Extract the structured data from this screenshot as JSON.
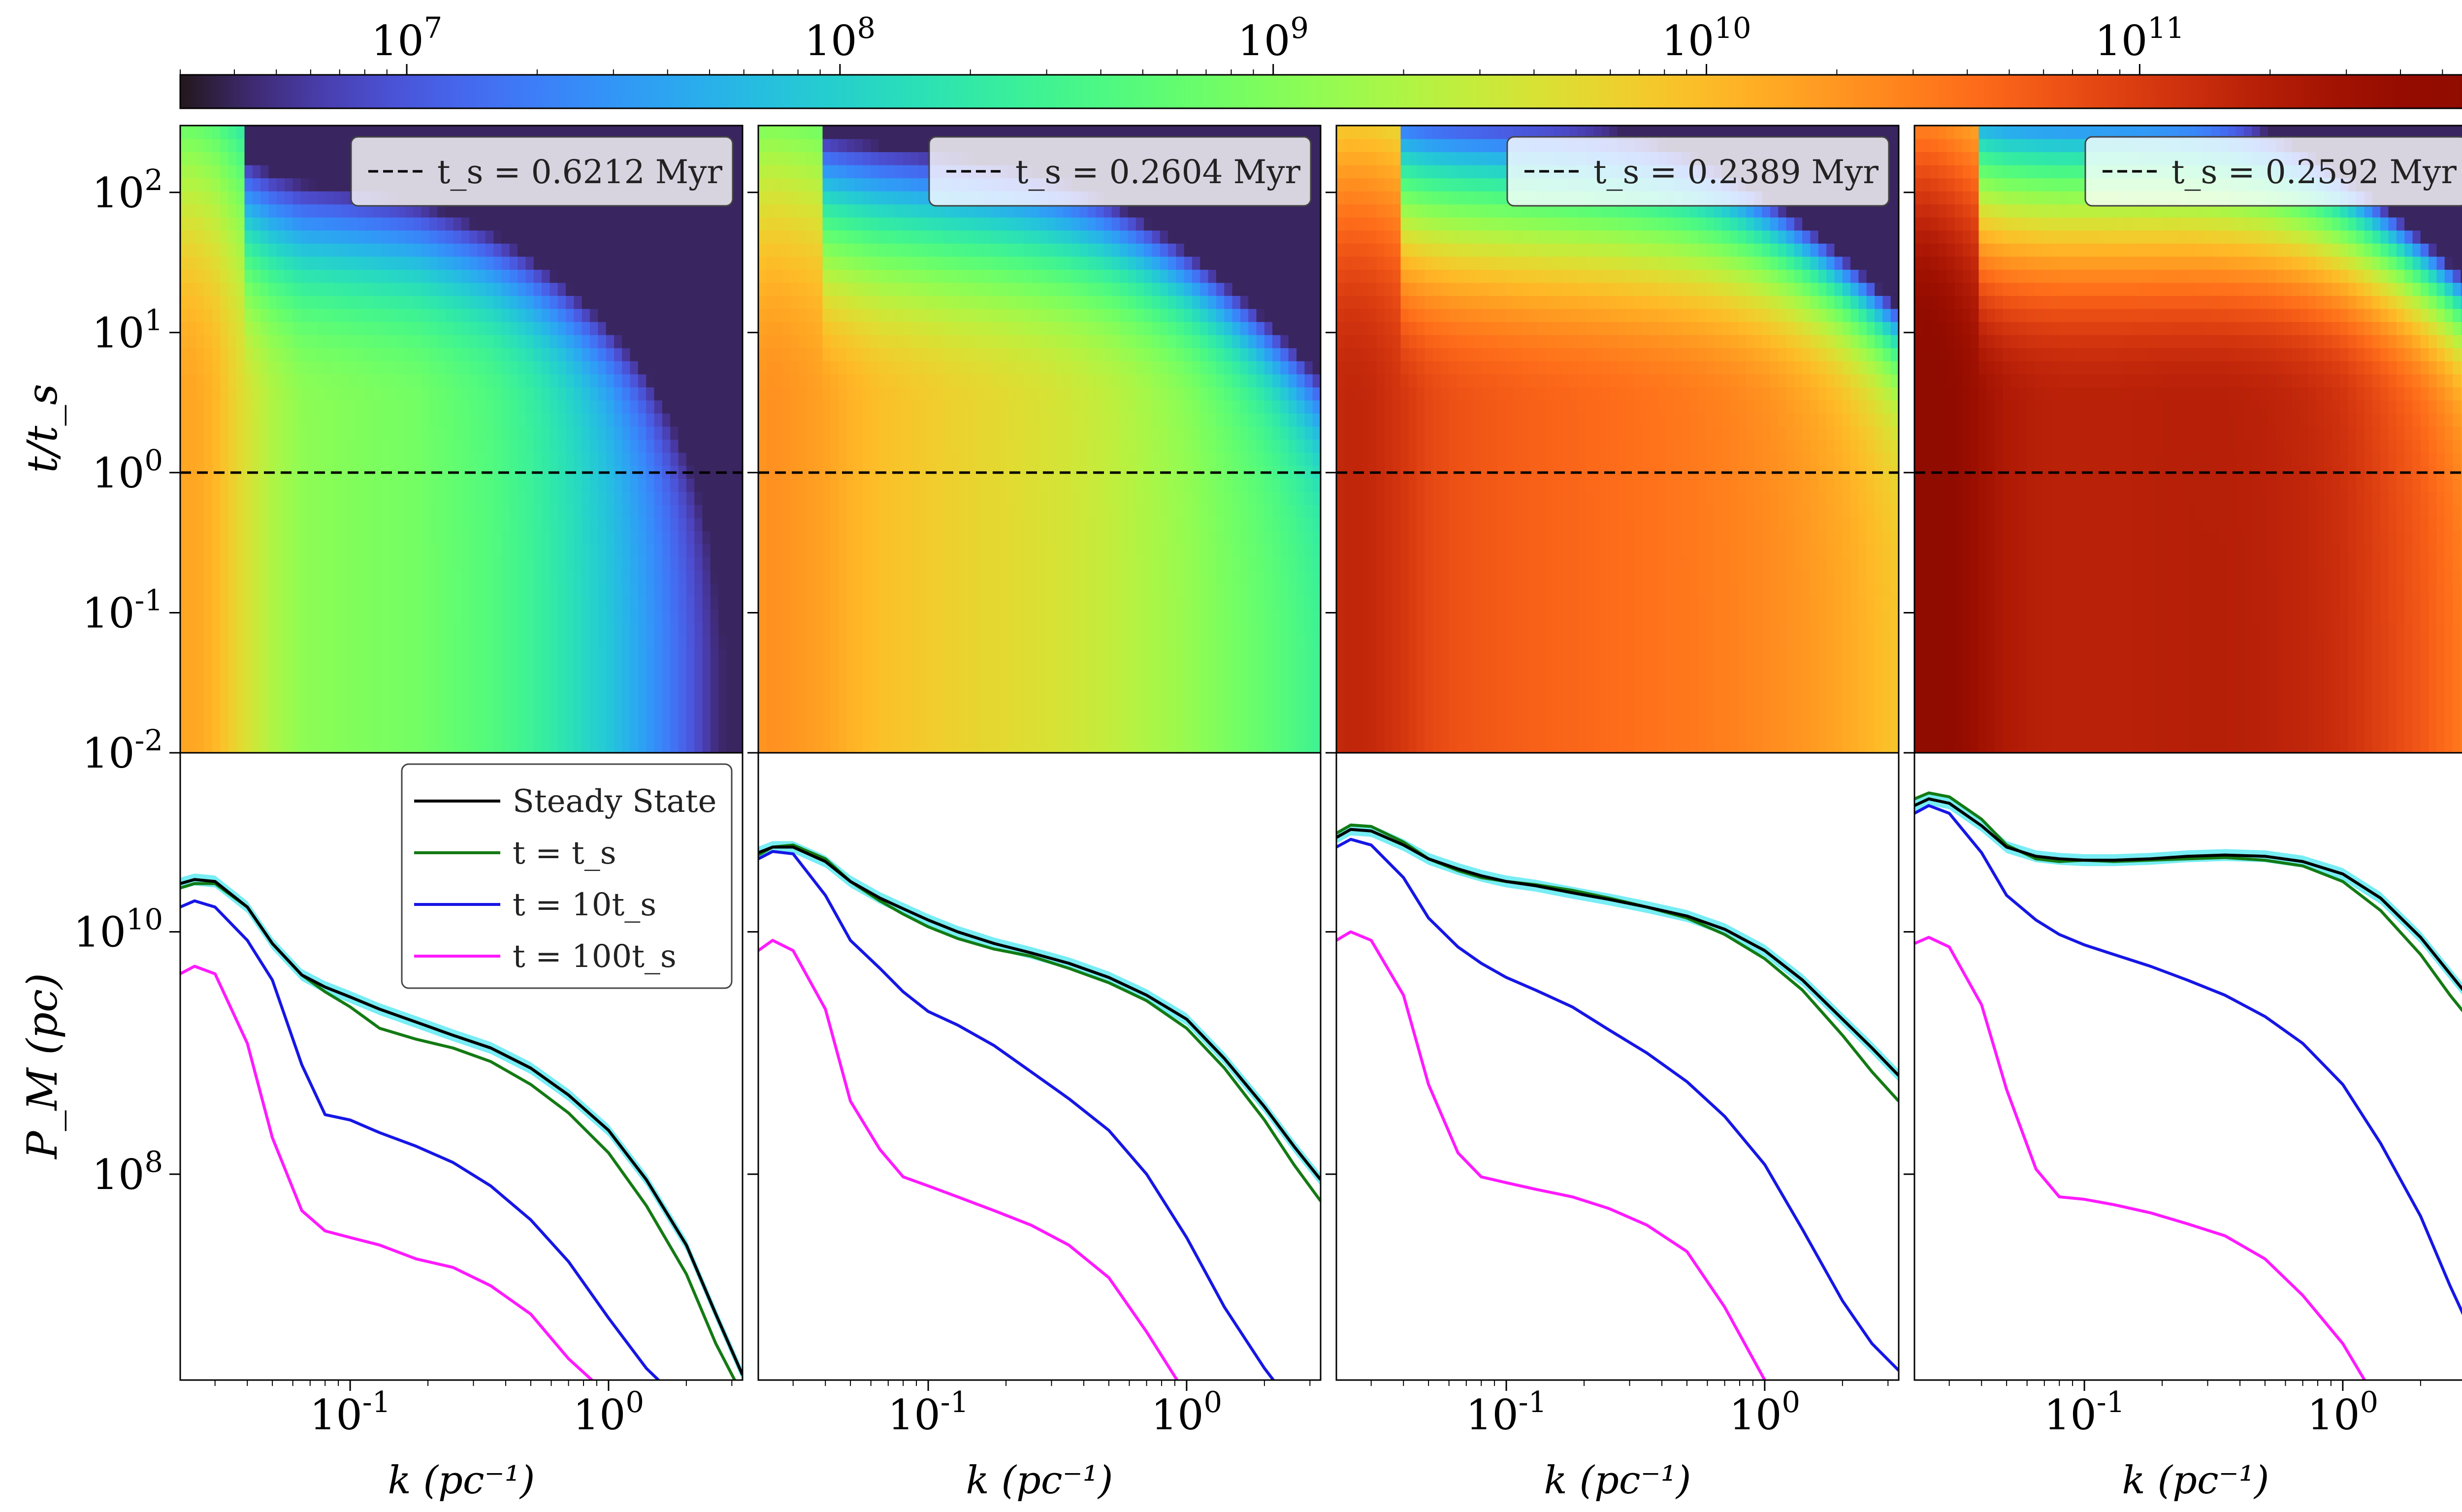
{
  "colorbar": {
    "scale": "log",
    "range": [
      3000000,
      600000000000
    ],
    "ticks": [
      {
        "value": 10000000,
        "label": "10^7"
      },
      {
        "value": 100000000,
        "label": "10^8"
      },
      {
        "value": 1000000000,
        "label": "10^9"
      },
      {
        "value": 10000000000,
        "label": "10^10"
      },
      {
        "value": 100000000000,
        "label": "10^11"
      }
    ],
    "colormap": "turbo"
  },
  "axes": {
    "k_range": [
      0.022,
      3.3
    ],
    "t_range": [
      0.01,
      300
    ],
    "p_range": [
      2000000,
      300000000000
    ],
    "heatmap_y_label": "t/t_s",
    "spectrum_y_label": "P_M (pc)",
    "x_label": "k (pc⁻¹)",
    "x_ticks": [
      {
        "value": 0.1,
        "label": "10^-1"
      },
      {
        "value": 1,
        "label": "10^0"
      }
    ],
    "t_ticks": [
      {
        "value": 100,
        "label": "10^2"
      },
      {
        "value": 10,
        "label": "10^1"
      },
      {
        "value": 1,
        "label": "10^0"
      },
      {
        "value": 0.1,
        "label": "10^-1"
      },
      {
        "value": 0.01,
        "label": "10^-2"
      }
    ],
    "p_ticks": [
      {
        "value": 10000000000,
        "label": "10^10"
      },
      {
        "value": 100000000,
        "label": "10^8"
      }
    ],
    "reference_line_t": 1
  },
  "legend": {
    "entries": [
      {
        "label": "Steady State",
        "color": "#000000"
      },
      {
        "label": "t = t_s",
        "color": "#137a13"
      },
      {
        "label": "t = 10t_s",
        "color": "#1616e6"
      },
      {
        "label": "t = 100t_s",
        "color": "#ff1aff"
      }
    ]
  },
  "chart_data": [
    {
      "type": "heatmap+line",
      "panel_label": "t_s = 0.6212 Myr",
      "ts_myr": 0.6212,
      "x": [
        0.022,
        0.025,
        0.03,
        0.04,
        0.05,
        0.065,
        0.08,
        0.1,
        0.13,
        0.18,
        0.25,
        0.35,
        0.5,
        0.7,
        1.0,
        1.4,
        2.0,
        2.6,
        3.3
      ],
      "series": [
        {
          "name": "Steady State",
          "color": "#000000",
          "values": [
            25000000000.0,
            27000000000.0,
            26000000000.0,
            16000000000.0,
            8000000000.0,
            4400000000.0,
            3500000000.0,
            2900000000.0,
            2300000000.0,
            1800000000.0,
            1400000000.0,
            1100000000.0,
            750000000.0,
            450000000.0,
            230000000.0,
            90000000.0,
            26000000.0,
            7000000.0,
            2200000.0
          ]
        },
        {
          "name": "t = t_s",
          "color": "#137a13",
          "values": [
            23000000000.0,
            25000000000.0,
            25000000000.0,
            16000000000.0,
            8000000000.0,
            4400000000.0,
            3200000000.0,
            2400000000.0,
            1600000000.0,
            1300000000.0,
            1100000000.0,
            850000000.0,
            550000000.0,
            320000000.0,
            150000000.0,
            55000000.0,
            15000000.0,
            4000000.0,
            1500000.0
          ]
        },
        {
          "name": "t = 10t_s",
          "color": "#1616e6",
          "values": [
            16000000000.0,
            18000000000.0,
            16000000000.0,
            8500000000.0,
            4000000000.0,
            800000000.0,
            310000000.0,
            280000000.0,
            220000000.0,
            170000000.0,
            125000000.0,
            80000000.0,
            42000000.0,
            19000000.0,
            6500000.0,
            2500000.0,
            1200000.0,
            1000000.0,
            1000000.0
          ]
        },
        {
          "name": "t = 100t_s",
          "color": "#ff1aff",
          "values": [
            4500000000.0,
            5200000000.0,
            4500000000.0,
            1200000000.0,
            200000000.0,
            50000000.0,
            34000000.0,
            30000000.0,
            26000000.0,
            20000000.0,
            17000000.0,
            12000000.0,
            7000000.0,
            3000000.0,
            1500000.0,
            1000000.0,
            1000000.0,
            1000000.0,
            1000000.0
          ]
        }
      ],
      "heatmap": {
        "base_levels": [
          15000000000.0,
          15000000000.0,
          11000000000.0,
          4000000000.0,
          2000000000.0,
          1200000000.0,
          1100000000.0,
          1000000000.0,
          900000000.0,
          800000000.0,
          600000000.0,
          450000000.0,
          280000000.0,
          160000000.0,
          80000000.0,
          35000000.0,
          12000000.0,
          5000000.0,
          3500000.0
        ],
        "kc_scale": 2.2,
        "hump": 0.35
      }
    },
    {
      "type": "heatmap+line",
      "panel_label": "t_s = 0.2604 Myr",
      "ts_myr": 0.2604,
      "x": [
        0.022,
        0.025,
        0.03,
        0.04,
        0.05,
        0.065,
        0.08,
        0.1,
        0.13,
        0.18,
        0.25,
        0.35,
        0.5,
        0.7,
        1.0,
        1.4,
        2.0,
        2.6,
        3.3
      ],
      "series": [
        {
          "name": "Steady State",
          "color": "#000000",
          "values": [
            45000000000.0,
            50000000000.0,
            50000000000.0,
            38000000000.0,
            26000000000.0,
            19000000000.0,
            15500000000.0,
            12500000000.0,
            10000000000.0,
            8000000000.0,
            6700000000.0,
            5500000000.0,
            4200000000.0,
            3000000000.0,
            1900000000.0,
            900000000.0,
            360000000.0,
            170000000.0,
            90000000.0
          ]
        },
        {
          "name": "t = t_s",
          "color": "#137a13",
          "values": [
            43000000000.0,
            50000000000.0,
            52000000000.0,
            40000000000.0,
            26000000000.0,
            18000000000.0,
            14000000000.0,
            11000000000.0,
            8800000000.0,
            7200000000.0,
            6300000000.0,
            5000000000.0,
            3800000000.0,
            2700000000.0,
            1600000000.0,
            750000000.0,
            280000000.0,
            120000000.0,
            60000000.0
          ]
        },
        {
          "name": "t = 10t_s",
          "color": "#1616e6",
          "values": [
            40000000000.0,
            46000000000.0,
            44000000000.0,
            20000000000.0,
            8500000000.0,
            5000000000.0,
            3200000000.0,
            2200000000.0,
            1700000000.0,
            1150000000.0,
            700000000.0,
            420000000.0,
            230000000.0,
            100000000.0,
            30000000.0,
            8000000.0,
            2500000.0,
            1200000.0,
            1000000.0
          ]
        },
        {
          "name": "t = 100t_s",
          "color": "#ff1aff",
          "values": [
            7000000000.0,
            8500000000.0,
            7000000000.0,
            2300000000.0,
            400000000.0,
            160000000.0,
            95000000.0,
            80000000.0,
            65000000.0,
            50000000.0,
            38000000.0,
            26000000.0,
            14000000.0,
            5000000.0,
            1500000.0,
            1000000.0,
            1000000.0,
            1000000.0,
            1000000.0
          ]
        }
      ],
      "heatmap": {
        "base_levels": [
          20000000000.0,
          22000000000.0,
          20000000000.0,
          16000000000.0,
          12000000000.0,
          9000000000.0,
          8000000000.0,
          7000000000.0,
          6000000000.0,
          5200000000.0,
          4400000000.0,
          3600000000.0,
          2800000000.0,
          2000000000.0,
          1400000000.0,
          900000000.0,
          600000000.0,
          420000000.0,
          300000000.0
        ],
        "kc_scale": 3.5,
        "hump": 0.25
      }
    },
    {
      "type": "heatmap+line",
      "panel_label": "t_s = 0.2389 Myr",
      "ts_myr": 0.2389,
      "x": [
        0.022,
        0.025,
        0.03,
        0.04,
        0.05,
        0.065,
        0.08,
        0.1,
        0.13,
        0.18,
        0.25,
        0.35,
        0.5,
        0.7,
        1.0,
        1.4,
        2.0,
        2.6,
        3.3
      ],
      "series": [
        {
          "name": "Steady State",
          "color": "#000000",
          "values": [
            60000000000.0,
            70000000000.0,
            68000000000.0,
            52000000000.0,
            40000000000.0,
            33000000000.0,
            29000000000.0,
            26000000000.0,
            24000000000.0,
            21000000000.0,
            18500000000.0,
            16000000000.0,
            13500000000.0,
            10500000000.0,
            7000000000.0,
            4000000000.0,
            1900000000.0,
            1100000000.0,
            650000000.0
          ]
        },
        {
          "name": "t = t_s",
          "color": "#137a13",
          "values": [
            65000000000.0,
            76000000000.0,
            74000000000.0,
            55000000000.0,
            40000000000.0,
            32000000000.0,
            28000000000.0,
            26000000000.0,
            24500000000.0,
            22000000000.0,
            19000000000.0,
            16000000000.0,
            13000000000.0,
            9500000000.0,
            6000000000.0,
            3300000000.0,
            1400000000.0,
            700000000.0,
            400000000.0
          ]
        },
        {
          "name": "t = 10t_s",
          "color": "#1616e6",
          "values": [
            50000000000.0,
            58000000000.0,
            52000000000.0,
            28000000000.0,
            13000000000.0,
            7500000000.0,
            5500000000.0,
            4200000000.0,
            3300000000.0,
            2400000000.0,
            1550000000.0,
            1000000000.0,
            580000000.0,
            300000000.0,
            120000000.0,
            35000000.0,
            9000000.0,
            4000000.0,
            2400000.0
          ]
        },
        {
          "name": "t = 100t_s",
          "color": "#ff1aff",
          "values": [
            8500000000.0,
            10000000000.0,
            8500000000.0,
            3000000000.0,
            550000000.0,
            150000000.0,
            95000000.0,
            85000000.0,
            75000000.0,
            65000000.0,
            52000000.0,
            38000000.0,
            23000000.0,
            8000000.0,
            2000000.0,
            1000000.0,
            1000000.0,
            1000000.0,
            1000000.0
          ]
        }
      ],
      "heatmap": {
        "base_levels": [
          150000000000.0,
          160000000000.0,
          150000000000.0,
          110000000000.0,
          80000000000.0,
          65000000000.0,
          60000000000.0,
          55000000000.0,
          50000000000.0,
          46000000000.0,
          42000000000.0,
          38000000000.0,
          34000000000.0,
          30000000000.0,
          25000000000.0,
          20000000000.0,
          15000000000.0,
          11000000000.0,
          8000000000.0
        ],
        "kc_scale": 5.0,
        "hump": 0.2
      }
    },
    {
      "type": "heatmap+line",
      "panel_label": "t_s = 0.2592 Myr",
      "ts_myr": 0.2592,
      "x": [
        0.022,
        0.025,
        0.03,
        0.04,
        0.05,
        0.065,
        0.08,
        0.1,
        0.13,
        0.18,
        0.25,
        0.35,
        0.5,
        0.7,
        1.0,
        1.4,
        2.0,
        2.6,
        3.3
      ],
      "series": [
        {
          "name": "Steady State",
          "color": "#000000",
          "values": [
            110000000000.0,
            125000000000.0,
            115000000000.0,
            75000000000.0,
            50000000000.0,
            42000000000.0,
            40000000000.0,
            39000000000.0,
            39000000000.0,
            40000000000.0,
            42000000000.0,
            43000000000.0,
            42000000000.0,
            38000000000.0,
            30000000000.0,
            19000000000.0,
            9000000000.0,
            4500000000.0,
            2400000000.0
          ]
        },
        {
          "name": "t = t_s",
          "color": "#137a13",
          "values": [
            125000000000.0,
            140000000000.0,
            130000000000.0,
            85000000000.0,
            52000000000.0,
            40000000000.0,
            38000000000.0,
            39000000000.0,
            38000000000.0,
            39000000000.0,
            40000000000.0,
            41000000000.0,
            39000000000.0,
            35000000000.0,
            26000000000.0,
            15000000000.0,
            6500000000.0,
            3000000000.0,
            1600000000.0
          ]
        },
        {
          "name": "t = 10t_s",
          "color": "#1616e6",
          "values": [
            95000000000.0,
            110000000000.0,
            95000000000.0,
            45000000000.0,
            20000000000.0,
            12500000000.0,
            9500000000.0,
            7800000000.0,
            6500000000.0,
            5200000000.0,
            4000000000.0,
            3000000000.0,
            2000000000.0,
            1200000000.0,
            550000000.0,
            180000000.0,
            45000000.0,
            12000000.0,
            4000000.0
          ]
        },
        {
          "name": "t = 100t_s",
          "color": "#ff1aff",
          "values": [
            8000000000.0,
            9000000000.0,
            7500000000.0,
            2500000000.0,
            500000000.0,
            110000000.0,
            65000000.0,
            62000000.0,
            56000000.0,
            48000000.0,
            39000000.0,
            31000000.0,
            20000000.0,
            10000000.0,
            4000000.0,
            1200000.0,
            1000000.0,
            1000000.0,
            1000000.0
          ]
        }
      ],
      "heatmap": {
        "base_levels": [
          600000000000.0,
          620000000000.0,
          500000000000.0,
          300000000000.0,
          220000000000.0,
          190000000000.0,
          180000000000.0,
          180000000000.0,
          180000000000.0,
          185000000000.0,
          190000000000.0,
          190000000000.0,
          180000000000.0,
          160000000000.0,
          130000000000.0,
          90000000000.0,
          60000000000.0,
          40000000000.0,
          26000000000.0
        ],
        "kc_scale": 5.5,
        "hump": 0.2
      }
    }
  ]
}
